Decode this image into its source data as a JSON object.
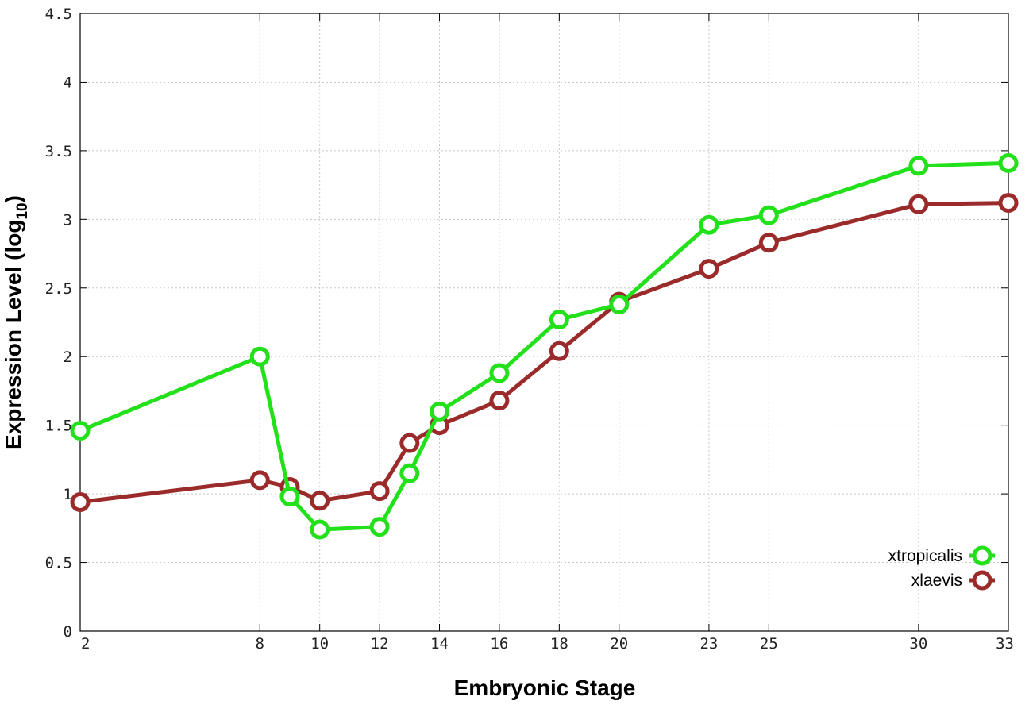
{
  "chart_data": {
    "type": "line",
    "title": "",
    "xlabel": "Embryonic Stage",
    "ylabel_main": "Expression Level (log",
    "ylabel_sub": "10",
    "ylabel_close": ")",
    "xlim": [
      2,
      33
    ],
    "ylim": [
      0,
      4.5
    ],
    "x_ticks": [
      2,
      8,
      10,
      12,
      14,
      16,
      18,
      20,
      23,
      25,
      30,
      33
    ],
    "y_ticks": [
      0,
      0.5,
      1,
      1.5,
      2,
      2.5,
      3,
      3.5,
      4,
      4.5
    ],
    "y_tick_labels": [
      "0",
      "0.5",
      "1",
      "1.5",
      "2",
      "2.5",
      "3",
      "3.5",
      "4",
      "4.5"
    ],
    "grid": true,
    "legend_position": "bottom-right",
    "x": [
      2,
      8,
      9,
      10,
      12,
      13,
      14,
      16,
      18,
      20,
      23,
      25,
      30,
      33
    ],
    "series": [
      {
        "name": "xtropicalis",
        "color": "#22e01a",
        "values": [
          1.46,
          2.0,
          0.98,
          0.74,
          0.76,
          1.15,
          1.6,
          1.88,
          2.27,
          2.38,
          2.96,
          3.03,
          3.39,
          3.41
        ]
      },
      {
        "name": "xlaevis",
        "color": "#9b2a2a",
        "values": [
          0.94,
          1.1,
          1.05,
          0.95,
          1.02,
          1.37,
          1.5,
          1.68,
          2.04,
          2.4,
          2.64,
          2.83,
          3.11,
          3.12
        ]
      }
    ]
  }
}
